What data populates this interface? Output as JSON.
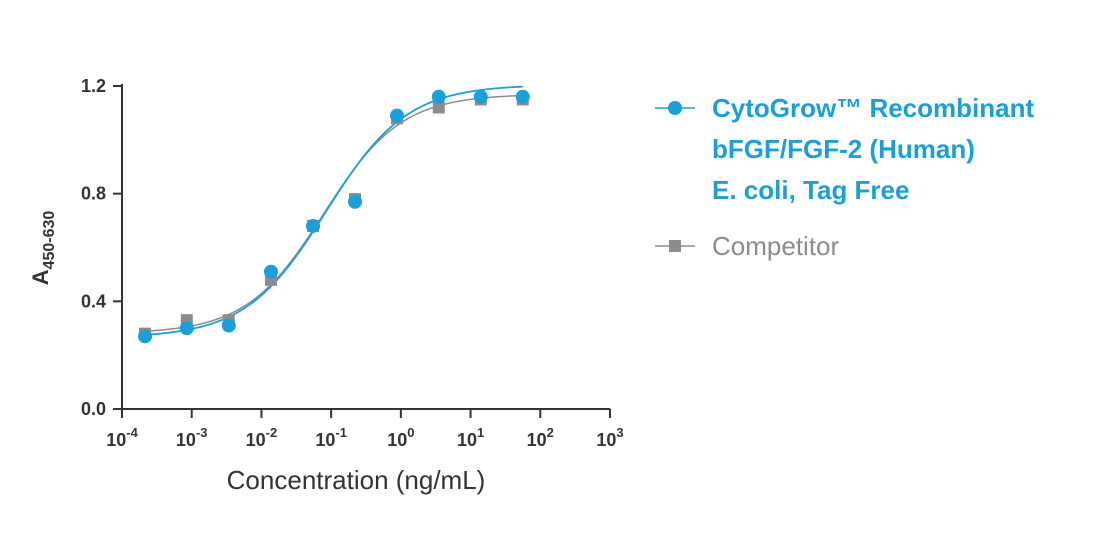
{
  "chart_data": {
    "type": "scatter",
    "title": "",
    "xlabel": "Concentration (ng/mL)",
    "ylabel": {
      "main": "A",
      "subscript": "450-630"
    },
    "x_scale": "log",
    "xlim": [
      0.0001,
      1000
    ],
    "ylim": [
      0,
      1.2
    ],
    "x_ticks": [
      {
        "value": 0.0001,
        "base": "10",
        "exp": "-4"
      },
      {
        "value": 0.001,
        "base": "10",
        "exp": "-3"
      },
      {
        "value": 0.01,
        "base": "10",
        "exp": "-2"
      },
      {
        "value": 0.1,
        "base": "10",
        "exp": "-1"
      },
      {
        "value": 1,
        "base": "10",
        "exp": "0"
      },
      {
        "value": 10,
        "base": "10",
        "exp": "1"
      },
      {
        "value": 100,
        "base": "10",
        "exp": "2"
      },
      {
        "value": 1000,
        "base": "10",
        "exp": "3"
      }
    ],
    "y_ticks": [
      {
        "value": 0,
        "label": "0.0"
      },
      {
        "value": 0.4,
        "label": "0.4"
      },
      {
        "value": 0.8,
        "label": "0.8"
      },
      {
        "value": 1.2,
        "label": "1.2"
      }
    ],
    "grid": false,
    "legend_position": "right",
    "series": [
      {
        "name": "CytoGrow™ Recombinant bFGF/FGF-2 (Human) E. coli, Tag Free",
        "legend_lines": [
          "CytoGrow™ Recombinant",
          "bFGF/FGF-2 (Human)",
          "E. coli, Tag Free"
        ],
        "color": "#1a9fd9",
        "marker": "circle",
        "x": [
          0.000214,
          0.00085,
          0.0034,
          0.0137,
          0.055,
          0.22,
          0.88,
          3.5,
          14,
          56
        ],
        "y": [
          0.27,
          0.3,
          0.31,
          0.51,
          0.68,
          0.77,
          1.09,
          1.16,
          1.16,
          1.16
        ],
        "fit": {
          "bottom": 0.265,
          "top": 1.205,
          "ec50": 0.085,
          "hill": 0.75
        }
      },
      {
        "name": "Competitor",
        "legend_lines": [
          "Competitor"
        ],
        "color": "#8c8c8c",
        "marker": "square",
        "x": [
          0.000214,
          0.00085,
          0.0034,
          0.0137,
          0.055,
          0.22,
          0.88,
          3.5,
          14,
          56
        ],
        "y": [
          0.28,
          0.33,
          0.33,
          0.48,
          0.68,
          0.78,
          1.08,
          1.12,
          1.15,
          1.15
        ],
        "fit": {
          "bottom": 0.28,
          "top": 1.17,
          "ec50": 0.078,
          "hill": 0.78
        }
      }
    ]
  }
}
